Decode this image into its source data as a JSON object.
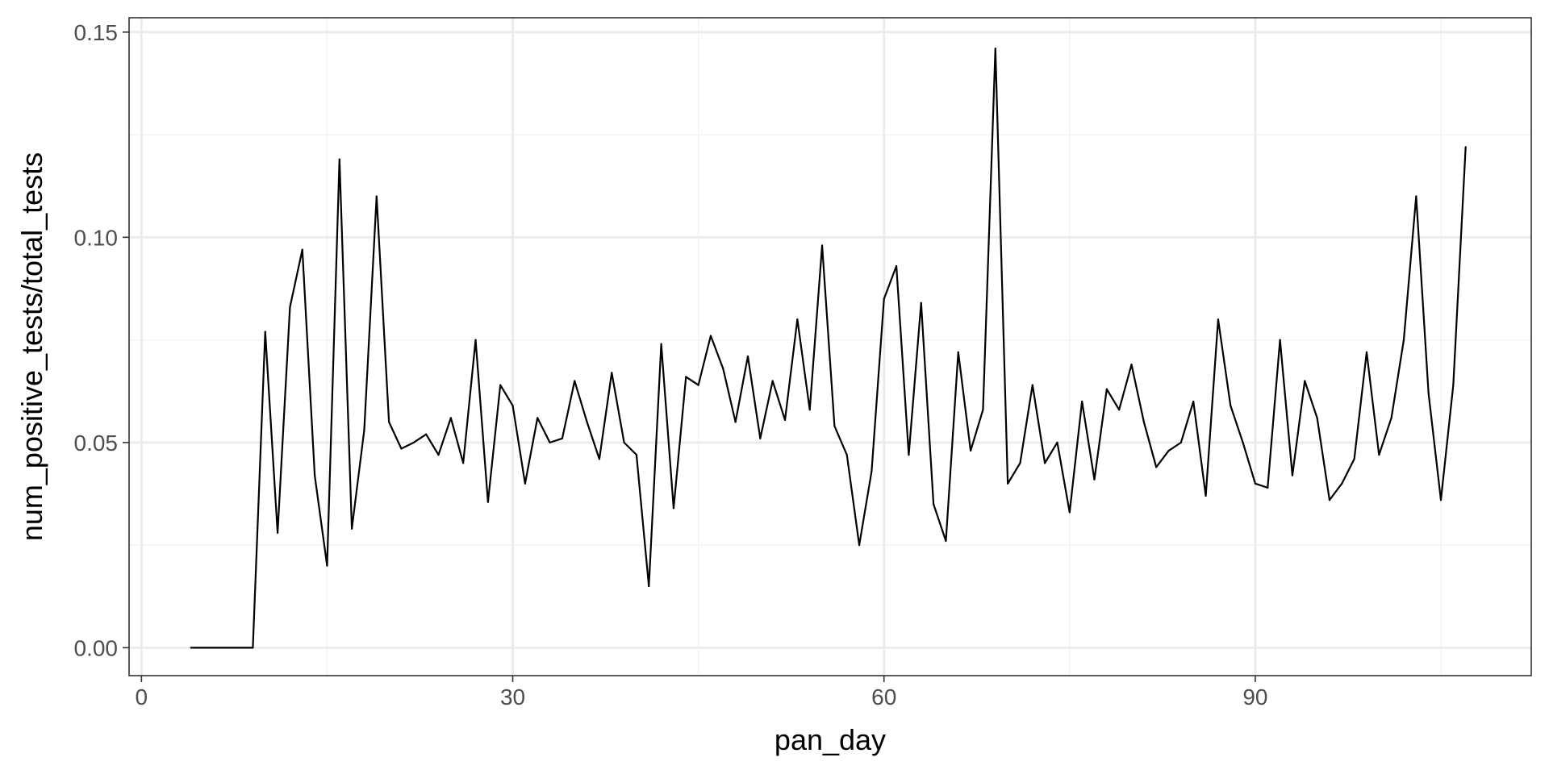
{
  "chart_data": {
    "type": "line",
    "title": "",
    "xlabel": "pan_day",
    "ylabel": "num_positive_tests/total_tests",
    "xlim": [
      -1,
      112.3
    ],
    "ylim": [
      -0.0068,
      0.1535
    ],
    "x_ticks": [
      0,
      30,
      60,
      90
    ],
    "x_tick_labels": [
      "0",
      "30",
      "60",
      "90"
    ],
    "x_minor_ticks": [
      15,
      45,
      75,
      105
    ],
    "y_ticks": [
      0.0,
      0.05,
      0.1,
      0.15
    ],
    "y_tick_labels": [
      "0.00",
      "0.05",
      "0.10",
      "0.15"
    ],
    "y_minor_ticks": [
      0.025,
      0.075,
      0.125
    ],
    "grid": true,
    "theme": "bw",
    "colors": {
      "line": "#000000",
      "grid_major": "#ebebeb",
      "grid_minor": "#f2f2f2",
      "panel_border": "#333333",
      "tick_text": "#4d4d4d"
    },
    "series": [
      {
        "x": [
          4,
          5,
          6,
          7,
          8,
          9,
          10,
          11,
          12,
          13,
          14,
          15,
          16,
          17,
          18,
          19,
          20,
          21,
          22,
          23,
          24,
          25,
          26,
          27,
          28,
          29,
          30,
          31,
          32,
          33,
          34,
          35,
          36,
          37,
          38,
          39,
          40,
          41,
          42,
          43,
          44,
          45,
          46,
          47,
          48,
          49,
          50,
          51,
          52,
          53,
          54,
          55,
          56,
          57,
          58,
          59,
          60,
          61,
          62,
          63,
          64,
          65,
          66,
          67,
          68,
          69,
          70,
          71,
          72,
          73,
          74,
          75,
          76,
          77,
          78,
          79,
          80,
          81,
          82,
          83,
          84,
          85,
          86,
          87,
          88,
          89,
          90,
          91,
          92,
          93,
          94,
          95,
          96,
          97,
          98,
          99,
          100,
          101,
          102,
          103,
          104,
          105,
          106,
          107
        ],
        "y": [
          0,
          0,
          0,
          0,
          0,
          0,
          0.077,
          0.028,
          0.083,
          0.097,
          0.042,
          0.02,
          0.119,
          0.029,
          0.053,
          0.11,
          0.055,
          0.0485,
          0.05,
          0.052,
          0.047,
          0.056,
          0.045,
          0.075,
          0.0355,
          0.064,
          0.059,
          0.04,
          0.056,
          0.05,
          0.051,
          0.065,
          0.055,
          0.046,
          0.067,
          0.05,
          0.047,
          0.015,
          0.074,
          0.034,
          0.066,
          0.064,
          0.076,
          0.068,
          0.055,
          0.071,
          0.051,
          0.065,
          0.0555,
          0.08,
          0.058,
          0.098,
          0.054,
          0.047,
          0.025,
          0.043,
          0.085,
          0.093,
          0.047,
          0.084,
          0.035,
          0.026,
          0.072,
          0.048,
          0.058,
          0.146,
          0.04,
          0.045,
          0.064,
          0.045,
          0.05,
          0.033,
          0.06,
          0.041,
          0.063,
          0.058,
          0.069,
          0.055,
          0.044,
          0.048,
          0.05,
          0.06,
          0.037,
          0.08,
          0.059,
          0.05,
          0.04,
          0.039,
          0.075,
          0.042,
          0.065,
          0.056,
          0.036,
          0.04,
          0.046,
          0.072,
          0.047,
          0.056,
          0.075,
          0.11,
          0.062,
          0.036,
          0.064,
          0.122
        ]
      }
    ]
  }
}
